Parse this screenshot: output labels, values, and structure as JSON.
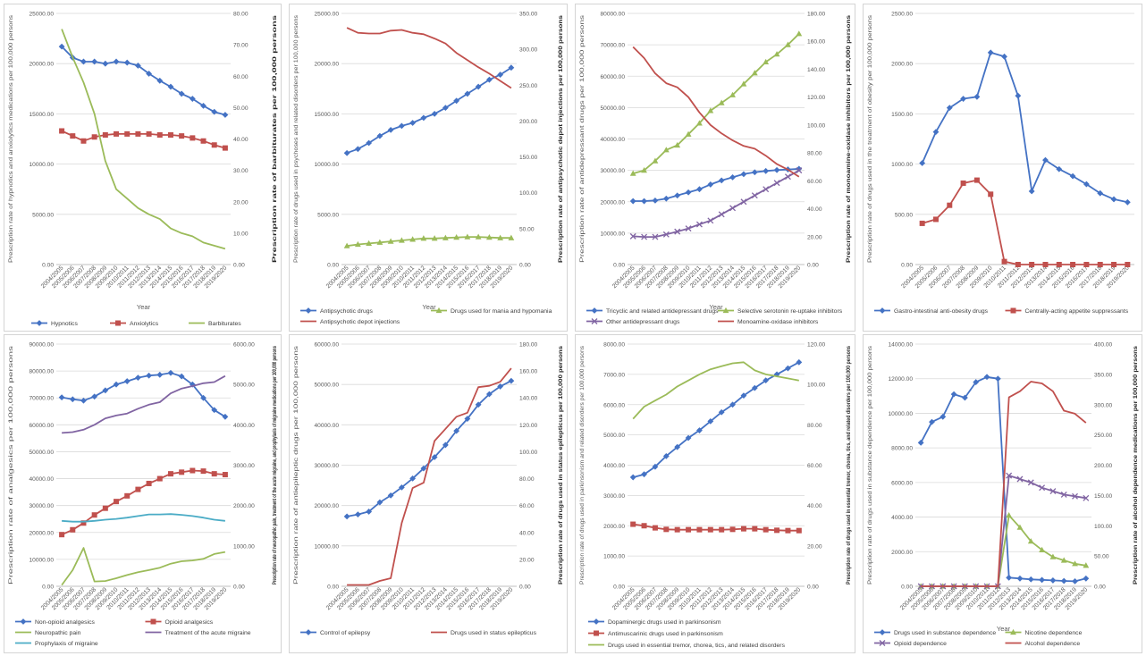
{
  "x_label": "Year",
  "years": [
    "2004/2005",
    "2005/2006",
    "2006/2007",
    "2007/2008",
    "2008/2009",
    "2009/2010",
    "2010/2011",
    "2011/2012",
    "2012/2013",
    "2013/2014",
    "2014/2015",
    "2015/2016",
    "2016/2017",
    "2017/2018",
    "2018/2019",
    "2019/2020"
  ],
  "colors": {
    "blue": "#4472c4",
    "red": "#c0504d",
    "green": "#9bbb59",
    "purple": "#8064a2",
    "teal": "#4bacc6"
  },
  "chart_data": [
    {
      "type": "line",
      "xlabel": "Year",
      "y_left": {
        "label": "Prescription rate of hypnotics and anxiolytics medications per 100,000 persons",
        "ticks": [
          "0.00",
          "5000.00",
          "10000.00",
          "15000.00",
          "20000.00",
          "25000.00"
        ],
        "ylim": [
          0,
          25000
        ]
      },
      "y_right": {
        "label": "Prescription rate of barbiturates per 100,000 persons",
        "ticks": [
          "0.00",
          "10.00",
          "20.00",
          "30.00",
          "40.00",
          "50.00",
          "60.00",
          "70.00",
          "80.00"
        ],
        "ylim": [
          0,
          80
        ]
      },
      "series": [
        {
          "name": "Hypnotics",
          "axis": "left",
          "color": "blue",
          "marker": "diamond",
          "values": [
            21700,
            20600,
            20200,
            20200,
            20000,
            20200,
            20100,
            19800,
            19000,
            18300,
            17700,
            17000,
            16500,
            15800,
            15200,
            14900
          ]
        },
        {
          "name": "Anxiolytics",
          "axis": "left",
          "color": "red",
          "marker": "square",
          "values": [
            13300,
            12800,
            12300,
            12700,
            12900,
            13000,
            13000,
            13000,
            13000,
            12900,
            12900,
            12800,
            12600,
            12300,
            11900,
            11600
          ]
        },
        {
          "name": "Barbiturates",
          "axis": "right",
          "color": "green",
          "marker": "none",
          "values": [
            75,
            66,
            58,
            48,
            33,
            24,
            21,
            18,
            16,
            14.5,
            11.5,
            10,
            9,
            7,
            6,
            5
          ]
        }
      ]
    },
    {
      "type": "line",
      "xlabel": "Year",
      "y_left": {
        "label": "Prescription rate of drugs used in psychoses and related disorders per 100,000 persons",
        "ticks": [
          "0.00",
          "5000.00",
          "10000.00",
          "15000.00",
          "20000.00",
          "25000.00"
        ],
        "ylim": [
          0,
          25000
        ]
      },
      "y_right": {
        "label": "Prescription rate of antipsychotic depot injections per 100,000 persons",
        "ticks": [
          "0.00",
          "50.00",
          "100.00",
          "150.00",
          "200.00",
          "250.00",
          "300.00",
          "350.00"
        ],
        "ylim": [
          0,
          350
        ]
      },
      "series": [
        {
          "name": "Antipsychotic drugs",
          "axis": "left",
          "color": "blue",
          "marker": "diamond",
          "values": [
            11100,
            11500,
            12100,
            12800,
            13400,
            13800,
            14100,
            14600,
            15000,
            15600,
            16300,
            17000,
            17700,
            18400,
            18900,
            19600
          ]
        },
        {
          "name": "Drugs used for mania and hypomania",
          "axis": "left",
          "color": "green",
          "marker": "triangle",
          "values": [
            1850,
            2000,
            2100,
            2200,
            2300,
            2400,
            2500,
            2600,
            2600,
            2650,
            2700,
            2750,
            2750,
            2700,
            2650,
            2650
          ]
        },
        {
          "name": "Antipsychotic depot injections",
          "axis": "right",
          "color": "red",
          "marker": "none",
          "values": [
            330,
            323,
            322,
            322,
            326,
            327,
            323,
            321,
            315,
            308,
            295,
            285,
            275,
            266,
            256,
            246
          ]
        }
      ]
    },
    {
      "type": "line",
      "xlabel": "Year",
      "y_left": {
        "label": "Prescription rate of antidepressant drugs per 100,000 persons",
        "ticks": [
          "0.00",
          "10000.00",
          "20000.00",
          "30000.00",
          "40000.00",
          "50000.00",
          "60000.00",
          "70000.00",
          "80000.00"
        ],
        "ylim": [
          0,
          80000
        ]
      },
      "y_right": {
        "label": "Prescription rate of monoamine-oxidase inhibitors per 100,000 persons",
        "ticks": [
          "0.00",
          "20.00",
          "40.00",
          "60.00",
          "80.00",
          "100.00",
          "120.00",
          "140.00",
          "160.00",
          "180.00"
        ],
        "ylim": [
          0,
          180
        ]
      },
      "series": [
        {
          "name": "Tricyclic and related antidepressant drugs",
          "axis": "left",
          "color": "blue",
          "marker": "diamond",
          "values": [
            20200,
            20200,
            20400,
            21000,
            22000,
            23000,
            24000,
            25500,
            26800,
            27800,
            28800,
            29400,
            29800,
            30100,
            30300,
            30500
          ]
        },
        {
          "name": "Selective serotonin re-uptake inhibitors",
          "axis": "left",
          "color": "green",
          "marker": "triangle",
          "values": [
            29000,
            30000,
            33000,
            36500,
            38000,
            41500,
            45000,
            49000,
            51500,
            54000,
            57500,
            61000,
            64500,
            67000,
            70000,
            73500
          ]
        },
        {
          "name": "Other antidepressant drugs",
          "axis": "left",
          "color": "purple",
          "marker": "cross",
          "values": [
            9000,
            8800,
            8800,
            9600,
            10500,
            11500,
            12800,
            14000,
            16000,
            18000,
            20000,
            22000,
            24000,
            26000,
            28000,
            30000
          ]
        },
        {
          "name": "Monoamine-oxidase inhibitors",
          "axis": "right",
          "color": "red",
          "marker": "none",
          "values": [
            156,
            148,
            137,
            130,
            127,
            120,
            109,
            100,
            94,
            89,
            85,
            83,
            78,
            72,
            68,
            63
          ]
        }
      ]
    },
    {
      "type": "line",
      "xlabel": "",
      "y_left": {
        "label": "Prescription rate of drugs used in the treatment of obesity per 100,000 persons",
        "ticks": [
          "0.00",
          "500.00",
          "1000.00",
          "1500.00",
          "2000.00",
          "2500.00"
        ],
        "ylim": [
          0,
          2500
        ]
      },
      "y_right": null,
      "series": [
        {
          "name": "Gastro-intestinal anti-obesity drugs",
          "axis": "left",
          "color": "blue",
          "marker": "diamond",
          "values": [
            1010,
            1320,
            1560,
            1650,
            1670,
            2110,
            2070,
            1680,
            730,
            1040,
            950,
            880,
            800,
            710,
            650,
            620
          ]
        },
        {
          "name": "Centrally-acting appetite suppressants",
          "axis": "left",
          "color": "red",
          "marker": "square",
          "values": [
            410,
            450,
            590,
            810,
            840,
            700,
            30,
            0,
            0,
            0,
            0,
            0,
            0,
            0,
            0,
            0
          ]
        }
      ]
    },
    {
      "type": "line",
      "xlabel": "",
      "y_left": {
        "label": "Prescription rate of analgesics per 100,000 persons",
        "ticks": [
          "0.00",
          "10000.00",
          "20000.00",
          "30000.00",
          "40000.00",
          "50000.00",
          "60000.00",
          "70000.00",
          "80000.00",
          "90000.00"
        ],
        "ylim": [
          0,
          90000
        ]
      },
      "y_right": {
        "label": "Prescription rate of neuropathic pain, treatment of the acute migraine, and prophylaxis of migraine medications per 100,000 persons",
        "ticks": [
          "0.00",
          "1000.00",
          "2000.00",
          "3000.00",
          "4000.00",
          "5000.00",
          "6000.00"
        ],
        "ylim": [
          0,
          6000
        ]
      },
      "series": [
        {
          "name": "Non-opioid analgesics",
          "axis": "left",
          "color": "blue",
          "marker": "diamond",
          "values": [
            70200,
            69500,
            69000,
            70500,
            72800,
            75000,
            76200,
            77500,
            78300,
            78600,
            79300,
            78000,
            75000,
            70000,
            65500,
            63000
          ]
        },
        {
          "name": "Opioid analgesics",
          "axis": "left",
          "color": "red",
          "marker": "square",
          "values": [
            19200,
            21000,
            23500,
            26500,
            29000,
            31500,
            33600,
            36000,
            38200,
            40000,
            41800,
            42400,
            43000,
            42800,
            41800,
            41500
          ]
        },
        {
          "name": "Neuropathic pain",
          "axis": "right",
          "color": "green",
          "marker": "none",
          "values": [
            30,
            400,
            950,
            120,
            130,
            200,
            280,
            350,
            400,
            460,
            560,
            620,
            640,
            680,
            800,
            850
          ]
        },
        {
          "name": "Treatment of the acute migraine",
          "axis": "right",
          "color": "purple",
          "marker": "none",
          "values": [
            3800,
            3820,
            3880,
            4000,
            4160,
            4230,
            4280,
            4400,
            4500,
            4560,
            4780,
            4900,
            4960,
            5030,
            5060,
            5210
          ]
        },
        {
          "name": "Prophylaxis of migraine",
          "axis": "right",
          "color": "teal",
          "marker": "none",
          "values": [
            1620,
            1600,
            1600,
            1620,
            1650,
            1670,
            1700,
            1740,
            1780,
            1780,
            1790,
            1770,
            1740,
            1700,
            1650,
            1620
          ]
        }
      ]
    },
    {
      "type": "line",
      "xlabel": "",
      "y_left": {
        "label": "Prescription rate of antiepileptic drugs per 100,000 persons",
        "ticks": [
          "0.00",
          "10000.00",
          "20000.00",
          "30000.00",
          "40000.00",
          "50000.00",
          "60000.00"
        ],
        "ylim": [
          0,
          60000
        ]
      },
      "y_right": {
        "label": "Prescription rate of drugs used in status epilepticus per 100,000 persons",
        "ticks": [
          "0.00",
          "20.00",
          "40.00",
          "60.00",
          "80.00",
          "100.00",
          "120.00",
          "140.00",
          "160.00",
          "180.00"
        ],
        "ylim": [
          0,
          180
        ]
      },
      "series": [
        {
          "name": "Control of epilepsy",
          "axis": "left",
          "color": "blue",
          "marker": "diamond",
          "values": [
            17300,
            17800,
            18500,
            20800,
            22500,
            24500,
            26700,
            29200,
            32000,
            35000,
            38500,
            41500,
            45000,
            47600,
            49500,
            50900
          ]
        },
        {
          "name": "Drugs used in status epilepticus",
          "axis": "right",
          "color": "red",
          "marker": "none",
          "values": [
            1,
            1,
            1,
            4,
            6,
            47,
            73,
            77,
            108,
            117,
            126,
            129,
            148,
            149,
            152,
            162
          ]
        }
      ]
    },
    {
      "type": "line",
      "xlabel": "",
      "y_left": {
        "label": "Prescription rate of drugs used in parkinsonism and related disorders per 100,000 persons",
        "ticks": [
          "0.00",
          "1000.00",
          "2000.00",
          "3000.00",
          "4000.00",
          "5000.00",
          "6000.00",
          "7000.00",
          "8000.00"
        ],
        "ylim": [
          0,
          8000
        ]
      },
      "y_right": {
        "label": "Prescription rate of drugs used in essential tremor, chorea, tics, and related disorders per 100,000 persons",
        "ticks": [
          "0.00",
          "20.00",
          "40.00",
          "60.00",
          "80.00",
          "100.00",
          "120.00"
        ],
        "ylim": [
          0,
          120
        ]
      },
      "series": [
        {
          "name": "Dopaminergic drugs used in parkinsonism",
          "axis": "left",
          "color": "blue",
          "marker": "diamond",
          "values": [
            3600,
            3700,
            3950,
            4300,
            4600,
            4900,
            5150,
            5450,
            5750,
            6000,
            6300,
            6550,
            6800,
            7000,
            7200,
            7400
          ]
        },
        {
          "name": "Antimuscarinic drugs used in parkinsonism",
          "axis": "left",
          "color": "red",
          "marker": "square",
          "values": [
            2050,
            2000,
            1930,
            1880,
            1870,
            1870,
            1870,
            1870,
            1870,
            1880,
            1900,
            1900,
            1870,
            1850,
            1840,
            1840
          ]
        },
        {
          "name": "Drugs used in essential tremor, chorea, tics, and related disorders",
          "axis": "right",
          "color": "green",
          "marker": "none",
          "values": [
            83,
            89,
            92,
            95,
            99,
            102,
            105,
            107.5,
            109,
            110.5,
            111,
            107,
            105,
            104,
            103,
            102
          ]
        }
      ]
    },
    {
      "type": "line",
      "xlabel": "Year",
      "y_left": {
        "label": "Prescription rate of drugs used in substance dependence per 100,000 persons",
        "ticks": [
          "0.00",
          "2000.00",
          "4000.00",
          "6000.00",
          "8000.00",
          "10000.00",
          "12000.00",
          "14000.00"
        ],
        "ylim": [
          0,
          14000
        ]
      },
      "y_right": {
        "label": "Prescription rate of alcohol dependence medications per 100,000 persons",
        "ticks": [
          "0.00",
          "50.00",
          "100.00",
          "150.00",
          "200.00",
          "250.00",
          "300.00",
          "350.00",
          "400.00"
        ],
        "ylim": [
          0,
          400
        ]
      },
      "series": [
        {
          "name": "Drugs used in substance dependence",
          "axis": "left",
          "color": "blue",
          "marker": "diamond",
          "values": [
            8300,
            9500,
            9800,
            11100,
            10900,
            11800,
            12100,
            12000,
            500,
            450,
            400,
            370,
            340,
            310,
            290,
            450
          ]
        },
        {
          "name": "Nicotine dependence",
          "axis": "left",
          "color": "green",
          "marker": "triangle",
          "values": [
            0,
            0,
            0,
            0,
            0,
            0,
            0,
            0,
            4100,
            3400,
            2600,
            2100,
            1700,
            1500,
            1300,
            1200
          ]
        },
        {
          "name": "Opioid dependence",
          "axis": "left",
          "color": "purple",
          "marker": "cross",
          "values": [
            0,
            0,
            0,
            0,
            0,
            0,
            0,
            0,
            6400,
            6200,
            6000,
            5700,
            5500,
            5300,
            5200,
            5100
          ]
        },
        {
          "name": "Alcohol dependence",
          "axis": "right",
          "color": "red",
          "marker": "none",
          "values": [
            0,
            0,
            0,
            0,
            0,
            0,
            0,
            0,
            312,
            322,
            338,
            335,
            322,
            290,
            285,
            270
          ]
        }
      ]
    }
  ]
}
